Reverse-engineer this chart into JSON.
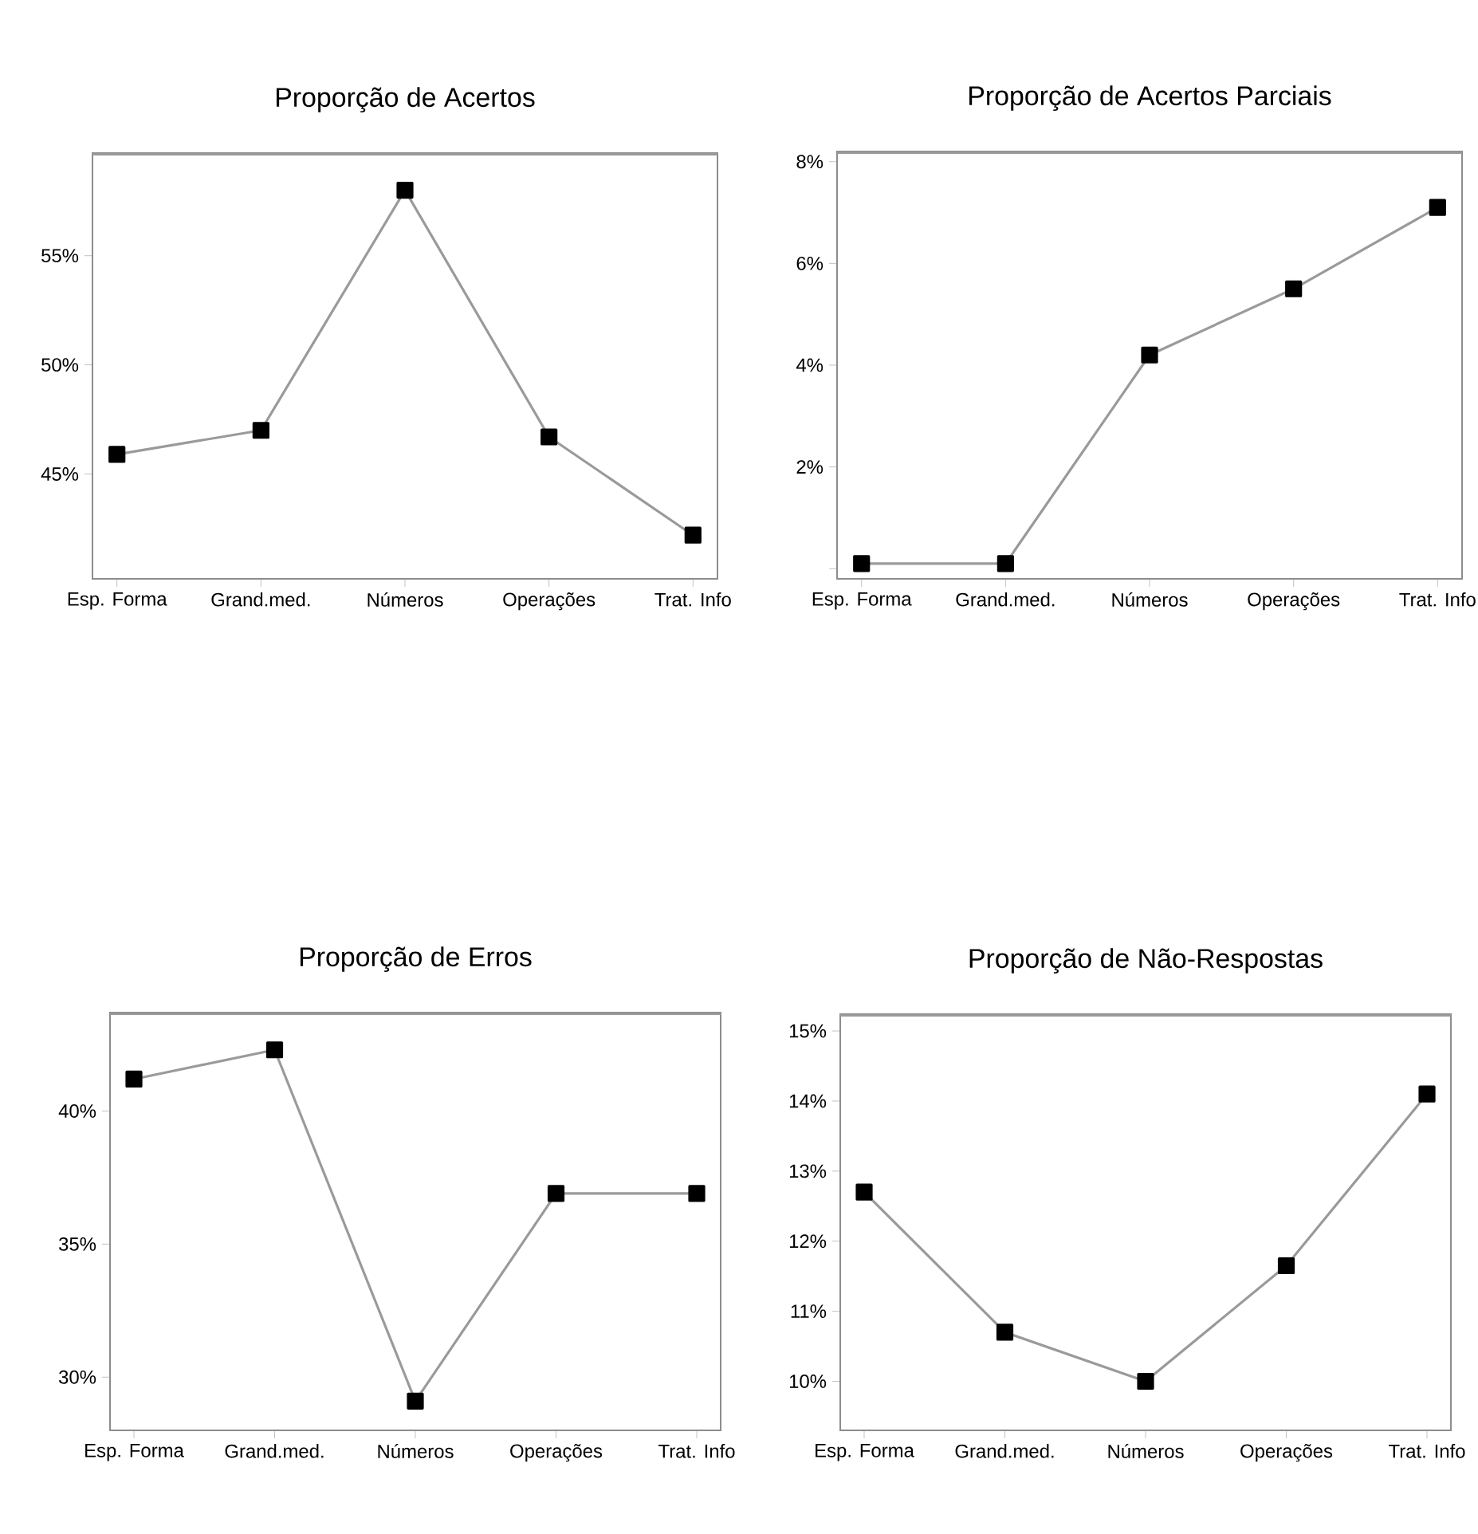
{
  "chart_data": [
    {
      "type": "line",
      "title": "Proporção de Acertos",
      "categories": [
        "Esp. Forma",
        "Grand.med.",
        "Números",
        "Operações",
        "Trat. Info"
      ],
      "marker": "square",
      "line_style": "solid",
      "ylim": [
        40.2,
        59.7
      ],
      "yticks": [
        {
          "value": 45,
          "label": "45%"
        },
        {
          "value": 50,
          "label": "50%"
        },
        {
          "value": 55,
          "label": "55%"
        }
      ],
      "series": [
        {
          "color": "#9a9a9a",
          "values": [
            45.9,
            47.0,
            58.0,
            46.7,
            42.2
          ]
        }
      ]
    },
    {
      "type": "line",
      "title": "Proporção de Acertos Parciais",
      "categories": [
        "Esp. Forma",
        "Grand.med.",
        "Números",
        "Operações",
        "Trat. Info"
      ],
      "marker": "square",
      "line_style": "solid",
      "ylim": [
        -0.2,
        8.2
      ],
      "yticks": [
        {
          "value": 0,
          "label": null
        },
        {
          "value": 2,
          "label": "2%"
        },
        {
          "value": 4,
          "label": "4%"
        },
        {
          "value": 6,
          "label": "6%"
        },
        {
          "value": 8,
          "label": "8%"
        }
      ],
      "series": [
        {
          "color": "#9a9a9a",
          "values": [
            0.1,
            0.1,
            4.2,
            5.5,
            7.1
          ]
        }
      ]
    },
    {
      "type": "line",
      "title": "Proporção de Erros",
      "categories": [
        "Esp. Forma",
        "Grand.med.",
        "Números",
        "Operações",
        "Trat. Info"
      ],
      "marker": "square",
      "line_style": "solid",
      "ylim": [
        28.0,
        43.7
      ],
      "yticks": [
        {
          "value": 30,
          "label": "30%"
        },
        {
          "value": 35,
          "label": "35%"
        },
        {
          "value": 40,
          "label": "40%"
        }
      ],
      "series": [
        {
          "color": "#9a9a9a",
          "values": [
            41.2,
            42.3,
            29.1,
            36.9,
            36.9
          ]
        }
      ]
    },
    {
      "type": "line",
      "title": "Proporção de Não-Respostas",
      "categories": [
        "Esp. Forma",
        "Grand.med.",
        "Números",
        "Operações",
        "Trat. Info"
      ],
      "marker": "square",
      "line_style": "solid",
      "ylim": [
        9.3,
        15.24
      ],
      "yticks": [
        {
          "value": 10,
          "label": "10%"
        },
        {
          "value": 11,
          "label": "11%"
        },
        {
          "value": 12,
          "label": "12%"
        },
        {
          "value": 13,
          "label": "13%"
        },
        {
          "value": 14,
          "label": "14%"
        },
        {
          "value": 15,
          "label": "15%"
        }
      ],
      "series": [
        {
          "color": "#9a9a9a",
          "values": [
            12.7,
            10.7,
            10.0,
            11.65,
            14.1
          ]
        }
      ]
    }
  ]
}
